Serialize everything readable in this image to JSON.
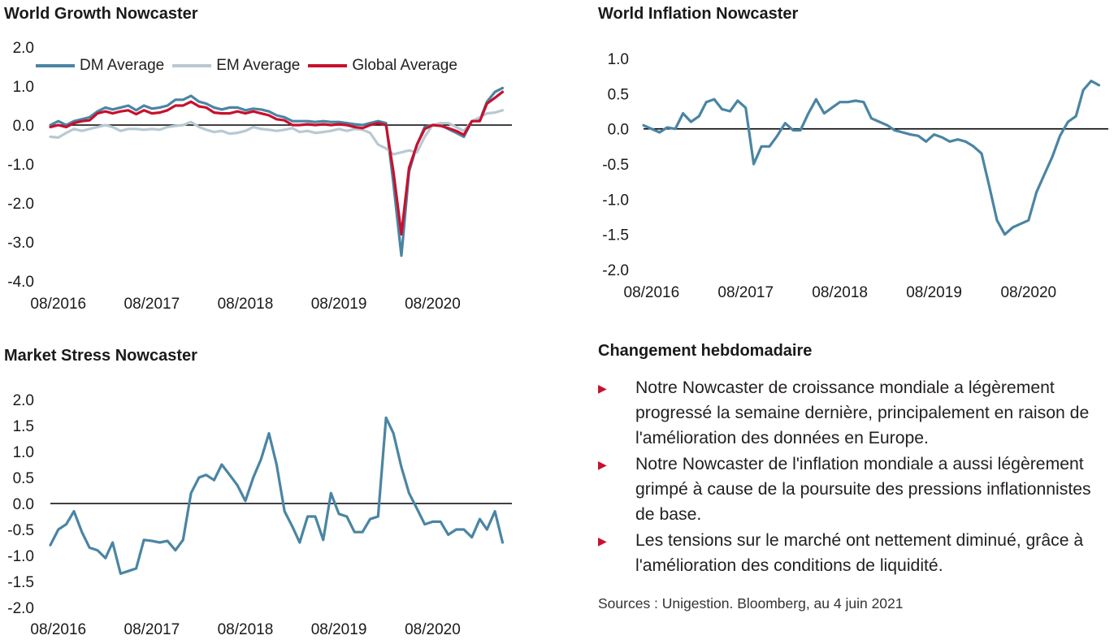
{
  "colors": {
    "dm": "#4a85a3",
    "em": "#b8c9d2",
    "global": "#c8102e",
    "accent": "#c8102e"
  },
  "commentary": {
    "title": "Changement hebdomadaire",
    "bullet_icon": "triangle-right-icon",
    "bullets": [
      "Notre Nowcaster de croissance mondiale a légèrement progressé la semaine dernière, principalement en raison de l'amélioration des données en Europe.",
      "Notre Nowcaster de l'inflation mondiale a aussi légèrement grimpé à cause de la poursuite des pressions inflationnistes de base.",
      "Les tensions sur le marché ont nettement diminué, grâce à l'amélioration des conditions de liquidité."
    ],
    "sources": "Sources : Unigestion. Bloomberg, au 4 juin 2021"
  },
  "chart_data": [
    {
      "id": "growth",
      "type": "line",
      "title": "World Growth Nowcaster",
      "xlabel": "",
      "ylabel": "",
      "x_range": [
        "2016-07-01",
        "2021-05-31"
      ],
      "ylim": [
        -4.0,
        2.0
      ],
      "yticks": [
        "2.0",
        "1.0",
        "0.0",
        "-1.0",
        "-2.0",
        "-3.0",
        "-4.0"
      ],
      "xticks": [
        {
          "date": "2016-08-01",
          "label": "08/2016"
        },
        {
          "date": "2017-08-01",
          "label": "08/2017"
        },
        {
          "date": "2018-08-01",
          "label": "08/2018"
        },
        {
          "date": "2019-08-01",
          "label": "08/2019"
        },
        {
          "date": "2020-08-01",
          "label": "08/2020"
        }
      ],
      "zero_line": true,
      "legend": "top-left",
      "series": [
        {
          "name": "DM Average",
          "color": "#4a85a3",
          "x": [
            "2016-07-01",
            "2016-08-01",
            "2016-09-01",
            "2016-10-01",
            "2016-11-01",
            "2016-12-01",
            "2017-01-01",
            "2017-02-01",
            "2017-03-01",
            "2017-04-01",
            "2017-05-01",
            "2017-06-01",
            "2017-07-01",
            "2017-08-01",
            "2017-09-01",
            "2017-10-01",
            "2017-11-01",
            "2017-12-01",
            "2018-01-01",
            "2018-02-01",
            "2018-03-01",
            "2018-04-01",
            "2018-05-01",
            "2018-06-01",
            "2018-07-01",
            "2018-08-01",
            "2018-09-01",
            "2018-10-01",
            "2018-11-01",
            "2018-12-01",
            "2019-01-01",
            "2019-02-01",
            "2019-03-01",
            "2019-04-01",
            "2019-05-01",
            "2019-06-01",
            "2019-07-01",
            "2019-08-01",
            "2019-09-01",
            "2019-10-01",
            "2019-11-01",
            "2019-12-01",
            "2020-01-01",
            "2020-02-01",
            "2020-03-01",
            "2020-04-01",
            "2020-05-01",
            "2020-06-01",
            "2020-07-01",
            "2020-08-01",
            "2020-09-01",
            "2020-10-01",
            "2020-11-01",
            "2020-12-01",
            "2021-01-01",
            "2021-02-01",
            "2021-03-01",
            "2021-04-01",
            "2021-05-01"
          ],
          "values": [
            0.0,
            0.1,
            0.0,
            0.1,
            0.15,
            0.2,
            0.35,
            0.45,
            0.4,
            0.45,
            0.5,
            0.38,
            0.5,
            0.42,
            0.45,
            0.5,
            0.65,
            0.65,
            0.75,
            0.6,
            0.55,
            0.45,
            0.4,
            0.45,
            0.45,
            0.38,
            0.42,
            0.4,
            0.35,
            0.25,
            0.2,
            0.1,
            0.1,
            0.1,
            0.08,
            0.1,
            0.08,
            0.08,
            0.05,
            0.02,
            0.0,
            0.05,
            0.1,
            0.05,
            -1.5,
            -3.35,
            -1.2,
            -0.5,
            -0.05,
            0.0,
            0.0,
            -0.1,
            -0.2,
            -0.3,
            0.1,
            0.12,
            0.6,
            0.85,
            0.95
          ]
        },
        {
          "name": "EM Average",
          "color": "#b8c9d2",
          "x": [
            "2016-07-01",
            "2016-08-01",
            "2016-09-01",
            "2016-10-01",
            "2016-11-01",
            "2016-12-01",
            "2017-01-01",
            "2017-02-01",
            "2017-03-01",
            "2017-04-01",
            "2017-05-01",
            "2017-06-01",
            "2017-07-01",
            "2017-08-01",
            "2017-09-01",
            "2017-10-01",
            "2017-11-01",
            "2017-12-01",
            "2018-01-01",
            "2018-02-01",
            "2018-03-01",
            "2018-04-01",
            "2018-05-01",
            "2018-06-01",
            "2018-07-01",
            "2018-08-01",
            "2018-09-01",
            "2018-10-01",
            "2018-11-01",
            "2018-12-01",
            "2019-01-01",
            "2019-02-01",
            "2019-03-01",
            "2019-04-01",
            "2019-05-01",
            "2019-06-01",
            "2019-07-01",
            "2019-08-01",
            "2019-09-01",
            "2019-10-01",
            "2019-11-01",
            "2019-12-01",
            "2020-01-01",
            "2020-02-01",
            "2020-03-01",
            "2020-04-01",
            "2020-05-01",
            "2020-06-01",
            "2020-07-01",
            "2020-08-01",
            "2020-09-01",
            "2020-10-01",
            "2020-11-01",
            "2020-12-01",
            "2021-01-01",
            "2021-02-01",
            "2021-03-01",
            "2021-04-01",
            "2021-05-01"
          ],
          "values": [
            -0.3,
            -0.32,
            -0.2,
            -0.1,
            -0.15,
            -0.1,
            -0.05,
            0.0,
            -0.05,
            -0.15,
            -0.1,
            -0.1,
            -0.12,
            -0.1,
            -0.12,
            -0.05,
            -0.02,
            0.0,
            0.08,
            -0.05,
            -0.12,
            -0.18,
            -0.15,
            -0.22,
            -0.2,
            -0.15,
            -0.05,
            -0.1,
            -0.12,
            -0.15,
            -0.12,
            -0.08,
            -0.18,
            -0.15,
            -0.2,
            -0.18,
            -0.15,
            -0.1,
            -0.15,
            -0.1,
            -0.12,
            -0.2,
            -0.5,
            -0.6,
            -0.75,
            -0.7,
            -0.65,
            -0.7,
            -0.3,
            0.0,
            0.05,
            0.05,
            -0.05,
            -0.15,
            0.1,
            0.2,
            0.3,
            0.32,
            0.38
          ]
        },
        {
          "name": "Global Average",
          "color": "#c8102e",
          "x": [
            "2016-07-01",
            "2016-08-01",
            "2016-09-01",
            "2016-10-01",
            "2016-11-01",
            "2016-12-01",
            "2017-01-01",
            "2017-02-01",
            "2017-03-01",
            "2017-04-01",
            "2017-05-01",
            "2017-06-01",
            "2017-07-01",
            "2017-08-01",
            "2017-09-01",
            "2017-10-01",
            "2017-11-01",
            "2017-12-01",
            "2018-01-01",
            "2018-02-01",
            "2018-03-01",
            "2018-04-01",
            "2018-05-01",
            "2018-06-01",
            "2018-07-01",
            "2018-08-01",
            "2018-09-01",
            "2018-10-01",
            "2018-11-01",
            "2018-12-01",
            "2019-01-01",
            "2019-02-01",
            "2019-03-01",
            "2019-04-01",
            "2019-05-01",
            "2019-06-01",
            "2019-07-01",
            "2019-08-01",
            "2019-09-01",
            "2019-10-01",
            "2019-11-01",
            "2019-12-01",
            "2020-01-01",
            "2020-02-01",
            "2020-03-01",
            "2020-04-01",
            "2020-05-01",
            "2020-06-01",
            "2020-07-01",
            "2020-08-01",
            "2020-09-01",
            "2020-10-01",
            "2020-11-01",
            "2020-12-01",
            "2021-01-01",
            "2021-02-01",
            "2021-03-01",
            "2021-04-01",
            "2021-05-01"
          ],
          "values": [
            -0.05,
            0.0,
            -0.05,
            0.05,
            0.1,
            0.12,
            0.3,
            0.35,
            0.3,
            0.35,
            0.38,
            0.28,
            0.38,
            0.3,
            0.32,
            0.38,
            0.5,
            0.5,
            0.6,
            0.48,
            0.45,
            0.32,
            0.3,
            0.3,
            0.35,
            0.3,
            0.35,
            0.3,
            0.25,
            0.15,
            0.12,
            0.0,
            0.0,
            0.02,
            0.0,
            0.02,
            0.0,
            0.02,
            0.0,
            -0.05,
            -0.08,
            0.0,
            0.05,
            0.0,
            -1.2,
            -2.8,
            -1.1,
            -0.5,
            -0.1,
            0.0,
            -0.02,
            -0.08,
            -0.15,
            -0.25,
            0.1,
            0.1,
            0.55,
            0.7,
            0.85
          ]
        }
      ]
    },
    {
      "id": "inflation",
      "type": "line",
      "title": "World Inflation Nowcaster",
      "xlabel": "",
      "ylabel": "",
      "x_range": [
        "2016-07-01",
        "2021-05-31"
      ],
      "ylim": [
        -2.0,
        1.0
      ],
      "yticks": [
        "1.0",
        "0.5",
        "0.0",
        "-0.5",
        "-1.0",
        "-1.5",
        "-2.0"
      ],
      "xticks": [
        {
          "date": "2016-08-01",
          "label": "08/2016"
        },
        {
          "date": "2017-08-01",
          "label": "08/2017"
        },
        {
          "date": "2018-08-01",
          "label": "08/2018"
        },
        {
          "date": "2019-08-01",
          "label": "08/2019"
        },
        {
          "date": "2020-08-01",
          "label": "08/2020"
        }
      ],
      "zero_line": true,
      "series": [
        {
          "color": "#4a85a3",
          "x": [
            "2016-07-01",
            "2016-08-01",
            "2016-09-01",
            "2016-10-01",
            "2016-11-01",
            "2016-12-01",
            "2017-01-01",
            "2017-02-01",
            "2017-03-01",
            "2017-04-01",
            "2017-05-01",
            "2017-06-01",
            "2017-07-01",
            "2017-08-01",
            "2017-09-01",
            "2017-10-01",
            "2017-11-01",
            "2017-12-01",
            "2018-01-01",
            "2018-02-01",
            "2018-03-01",
            "2018-04-01",
            "2018-05-01",
            "2018-06-01",
            "2018-07-01",
            "2018-08-01",
            "2018-09-01",
            "2018-10-01",
            "2018-11-01",
            "2018-12-01",
            "2019-01-01",
            "2019-02-01",
            "2019-03-01",
            "2019-04-01",
            "2019-05-01",
            "2019-06-01",
            "2019-07-01",
            "2019-08-01",
            "2019-09-01",
            "2019-10-01",
            "2019-11-01",
            "2019-12-01",
            "2020-01-01",
            "2020-02-01",
            "2020-03-01",
            "2020-04-01",
            "2020-05-01",
            "2020-06-01",
            "2020-07-01",
            "2020-08-01",
            "2020-09-01",
            "2020-10-01",
            "2020-11-01",
            "2020-12-01",
            "2021-01-01",
            "2021-02-01",
            "2021-03-01",
            "2021-04-01",
            "2021-05-01"
          ],
          "values": [
            0.05,
            0.0,
            -0.05,
            0.02,
            0.0,
            0.22,
            0.1,
            0.18,
            0.38,
            0.42,
            0.28,
            0.25,
            0.4,
            0.3,
            -0.5,
            -0.25,
            -0.25,
            -0.1,
            0.08,
            -0.02,
            -0.02,
            0.22,
            0.42,
            0.22,
            0.3,
            0.38,
            0.38,
            0.4,
            0.38,
            0.15,
            0.1,
            0.05,
            -0.02,
            -0.05,
            -0.08,
            -0.1,
            -0.18,
            -0.08,
            -0.12,
            -0.18,
            -0.15,
            -0.18,
            -0.25,
            -0.35,
            -0.8,
            -1.3,
            -1.5,
            -1.4,
            -1.35,
            -1.3,
            -0.9,
            -0.65,
            -0.4,
            -0.1,
            0.1,
            0.18,
            0.55,
            0.68,
            0.62
          ]
        }
      ]
    },
    {
      "id": "stress",
      "type": "line",
      "title": "Market Stress Nowcaster",
      "xlabel": "",
      "ylabel": "",
      "x_range": [
        "2016-07-01",
        "2021-05-31"
      ],
      "ylim": [
        -2.0,
        2.0
      ],
      "yticks": [
        "2.0",
        "1.5",
        "1.0",
        "0.5",
        "0.0",
        "-0.5",
        "-1.0",
        "-1.5",
        "-2.0"
      ],
      "xticks": [
        {
          "date": "2016-08-01",
          "label": "08/2016"
        },
        {
          "date": "2017-08-01",
          "label": "08/2017"
        },
        {
          "date": "2018-08-01",
          "label": "08/2018"
        },
        {
          "date": "2019-08-01",
          "label": "08/2019"
        },
        {
          "date": "2020-08-01",
          "label": "08/2020"
        }
      ],
      "zero_line": true,
      "series": [
        {
          "color": "#4a85a3",
          "x": [
            "2016-07-01",
            "2016-08-01",
            "2016-09-01",
            "2016-10-01",
            "2016-11-01",
            "2016-12-01",
            "2017-01-01",
            "2017-02-01",
            "2017-03-01",
            "2017-04-01",
            "2017-05-01",
            "2017-06-01",
            "2017-07-01",
            "2017-08-01",
            "2017-09-01",
            "2017-10-01",
            "2017-11-01",
            "2017-12-01",
            "2018-01-01",
            "2018-02-01",
            "2018-03-01",
            "2018-04-01",
            "2018-05-01",
            "2018-06-01",
            "2018-07-01",
            "2018-08-01",
            "2018-09-01",
            "2018-10-01",
            "2018-11-01",
            "2018-12-01",
            "2019-01-01",
            "2019-02-01",
            "2019-03-01",
            "2019-04-01",
            "2019-05-01",
            "2019-06-01",
            "2019-07-01",
            "2019-08-01",
            "2019-09-01",
            "2019-10-01",
            "2019-11-01",
            "2019-12-01",
            "2020-01-01",
            "2020-02-01",
            "2020-03-01",
            "2020-04-01",
            "2020-05-01",
            "2020-06-01",
            "2020-07-01",
            "2020-08-01",
            "2020-09-01",
            "2020-10-01",
            "2020-11-01",
            "2020-12-01",
            "2021-01-01",
            "2021-02-01",
            "2021-03-01",
            "2021-04-01",
            "2021-05-01"
          ],
          "values": [
            -0.8,
            -0.5,
            -0.4,
            -0.15,
            -0.55,
            -0.85,
            -0.9,
            -1.05,
            -0.75,
            -1.35,
            -1.3,
            -1.25,
            -0.7,
            -0.72,
            -0.75,
            -0.72,
            -0.9,
            -0.7,
            0.2,
            0.5,
            0.55,
            0.45,
            0.75,
            0.55,
            0.35,
            0.05,
            0.5,
            0.85,
            1.35,
            0.75,
            -0.15,
            -0.45,
            -0.75,
            -0.25,
            -0.25,
            -0.7,
            0.2,
            -0.2,
            -0.25,
            -0.55,
            -0.55,
            -0.3,
            -0.25,
            1.65,
            1.35,
            0.7,
            0.2,
            -0.1,
            -0.4,
            -0.35,
            -0.35,
            -0.6,
            -0.5,
            -0.5,
            -0.65,
            -0.3,
            -0.5,
            -0.15,
            -0.75
          ]
        }
      ]
    }
  ]
}
